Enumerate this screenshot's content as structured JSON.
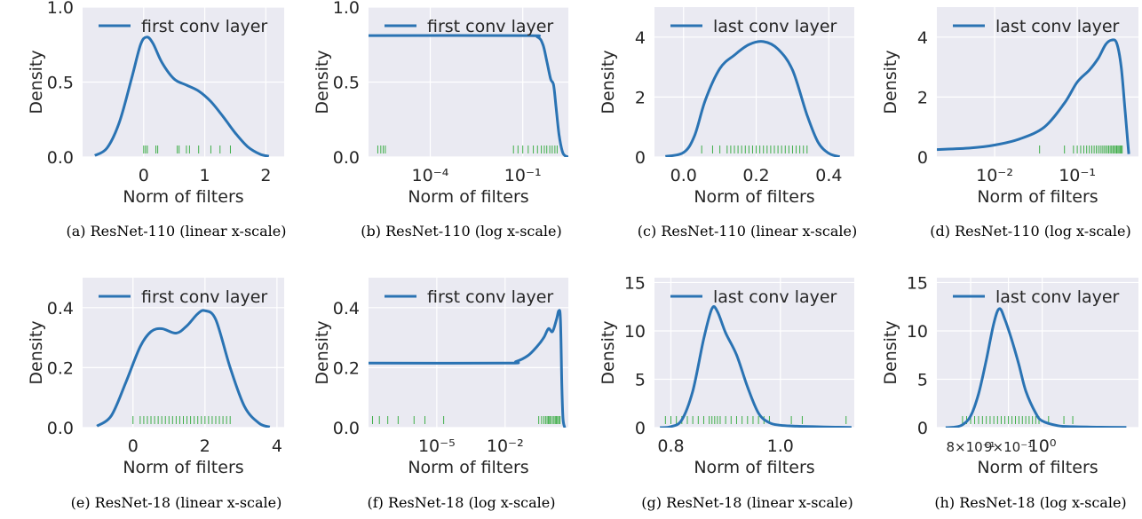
{
  "colors": {
    "background": "#eaeaf2",
    "grid": "#ffffff",
    "curve": "#2a73b3",
    "rug": "#3fae49",
    "text": "#262626"
  },
  "chart_data": [
    {
      "type": "line",
      "caption": "(a)  ResNet-110 (linear x-scale)",
      "legend": "first conv layer",
      "legend_loc": "upper center",
      "xlabel": "Norm of filters",
      "ylabel": "Density",
      "xscale": "linear",
      "xlim": [
        -1.0,
        2.3
      ],
      "ylim": [
        0,
        1.0
      ],
      "xticks": [
        0,
        1,
        2
      ],
      "xticklabels": [
        "0",
        "1",
        "2"
      ],
      "yticks": [
        0,
        0.5,
        1.0
      ],
      "yticklabels": [
        "0.0",
        "0.5",
        "1.0"
      ],
      "grid": true,
      "series": [
        {
          "x": [
            -0.8,
            -0.6,
            -0.4,
            -0.2,
            -0.05,
            0.05,
            0.15,
            0.3,
            0.5,
            0.7,
            0.9,
            1.1,
            1.3,
            1.5,
            1.7,
            1.9,
            2.05
          ],
          "y": [
            0.01,
            0.06,
            0.23,
            0.52,
            0.75,
            0.8,
            0.76,
            0.63,
            0.52,
            0.48,
            0.44,
            0.37,
            0.27,
            0.16,
            0.07,
            0.02,
            0.005
          ]
        }
      ],
      "rug": [
        0.0,
        0.03,
        0.06,
        0.2,
        0.23,
        0.55,
        0.58,
        0.7,
        0.75,
        0.9,
        1.1,
        1.25,
        1.42
      ]
    },
    {
      "type": "line",
      "caption": "(b)  ResNet-110 (log x-scale)",
      "legend": "first conv layer",
      "legend_loc": "upper center",
      "xlabel": "Norm of filters",
      "ylabel": "Density",
      "xscale": "log",
      "xlim": [
        1e-06,
        3.0
      ],
      "ylim": [
        0,
        1.0
      ],
      "xticks": [
        0.0001,
        0.1
      ],
      "xticklabels": [
        "10⁻⁴",
        "10⁻¹"
      ],
      "yticks": [
        0,
        0.5,
        1.0
      ],
      "yticklabels": [
        "0.0",
        "0.5",
        "1.0"
      ],
      "grid": true,
      "series": [
        {
          "x": [
            1e-06,
            0.1,
            0.3,
            0.45,
            0.6,
            0.8,
            1.0,
            1.2,
            1.5,
            1.9,
            2.3,
            3.0
          ],
          "y": [
            0.81,
            0.81,
            0.8,
            0.75,
            0.64,
            0.52,
            0.48,
            0.33,
            0.15,
            0.04,
            0.01,
            0.0
          ]
        }
      ],
      "rug": [
        2e-06,
        2.5e-06,
        3e-06,
        3.5e-06,
        0.05,
        0.07,
        0.1,
        0.15,
        0.22,
        0.3,
        0.4,
        0.5,
        0.6,
        0.75,
        0.9,
        1.1,
        1.3
      ]
    },
    {
      "type": "line",
      "caption": "(c)  ResNet-110 (linear x-scale)",
      "legend": "last conv layer",
      "legend_loc": "upper center",
      "xlabel": "Norm of filters",
      "ylabel": "Density",
      "xscale": "linear",
      "xlim": [
        -0.08,
        0.47
      ],
      "ylim": [
        0,
        5.0
      ],
      "xticks": [
        0.0,
        0.2,
        0.4
      ],
      "xticklabels": [
        "0.0",
        "0.2",
        "0.4"
      ],
      "yticks": [
        0,
        2,
        4
      ],
      "yticklabels": [
        "0",
        "2",
        "4"
      ],
      "grid": true,
      "series": [
        {
          "x": [
            -0.05,
            0.0,
            0.03,
            0.06,
            0.1,
            0.14,
            0.18,
            0.22,
            0.26,
            0.3,
            0.34,
            0.37,
            0.4,
            0.43
          ],
          "y": [
            0.02,
            0.15,
            0.7,
            1.9,
            2.95,
            3.4,
            3.75,
            3.85,
            3.6,
            2.9,
            1.4,
            0.5,
            0.12,
            0.01
          ]
        }
      ],
      "rug": [
        0.05,
        0.08,
        0.1,
        0.12,
        0.13,
        0.14,
        0.15,
        0.16,
        0.17,
        0.18,
        0.19,
        0.2,
        0.21,
        0.22,
        0.23,
        0.24,
        0.25,
        0.26,
        0.27,
        0.28,
        0.29,
        0.3,
        0.31,
        0.32,
        0.33,
        0.34
      ]
    },
    {
      "type": "line",
      "caption": "(d)  ResNet-110 (log x-scale)",
      "legend": "last conv layer",
      "legend_loc": "upper center",
      "xlabel": "Norm of filters",
      "ylabel": "Density",
      "xscale": "log",
      "xlim": [
        0.002,
        0.55
      ],
      "ylim": [
        0,
        5.0
      ],
      "xticks": [
        0.01,
        0.1
      ],
      "xticklabels": [
        "10⁻²",
        "10⁻¹"
      ],
      "yticks": [
        0,
        2,
        4
      ],
      "yticklabels": [
        "0",
        "2",
        "4"
      ],
      "grid": true,
      "series": [
        {
          "x": [
            0.002,
            0.005,
            0.01,
            0.02,
            0.04,
            0.07,
            0.1,
            0.14,
            0.18,
            0.22,
            0.26,
            0.3,
            0.34,
            0.38,
            0.42
          ],
          "y": [
            0.25,
            0.3,
            0.4,
            0.6,
            1.0,
            1.8,
            2.5,
            2.9,
            3.3,
            3.75,
            3.9,
            3.8,
            3.0,
            1.5,
            0.1
          ]
        }
      ],
      "rug": [
        0.035,
        0.07,
        0.09,
        0.1,
        0.11,
        0.12,
        0.13,
        0.14,
        0.15,
        0.16,
        0.17,
        0.18,
        0.19,
        0.2,
        0.21,
        0.22,
        0.23,
        0.24,
        0.25,
        0.26,
        0.27,
        0.28,
        0.29,
        0.3,
        0.31,
        0.32,
        0.33,
        0.34,
        0.35
      ]
    },
    {
      "type": "line",
      "caption": "(e)  ResNet-18 (linear x-scale)",
      "legend": "first conv layer",
      "legend_loc": "upper center",
      "xlabel": "Norm of filters",
      "ylabel": "Density",
      "xscale": "linear",
      "xlim": [
        -1.4,
        4.2
      ],
      "ylim": [
        0,
        0.5
      ],
      "xticks": [
        0,
        2,
        4
      ],
      "xticklabels": [
        "0",
        "2",
        "4"
      ],
      "yticks": [
        0,
        0.2,
        0.4
      ],
      "yticklabels": [
        "0.0",
        "0.2",
        "0.4"
      ],
      "grid": true,
      "series": [
        {
          "x": [
            -1.0,
            -0.6,
            -0.2,
            0.2,
            0.5,
            0.8,
            1.2,
            1.5,
            1.8,
            2.0,
            2.3,
            2.7,
            3.1,
            3.5,
            3.8
          ],
          "y": [
            0.005,
            0.04,
            0.15,
            0.27,
            0.32,
            0.33,
            0.315,
            0.34,
            0.38,
            0.39,
            0.36,
            0.2,
            0.07,
            0.015,
            0.002
          ]
        }
      ],
      "rug": [
        0.0,
        0.2,
        0.3,
        0.4,
        0.5,
        0.6,
        0.7,
        0.8,
        0.9,
        1.0,
        1.1,
        1.2,
        1.3,
        1.4,
        1.5,
        1.6,
        1.7,
        1.8,
        1.9,
        2.0,
        2.1,
        2.2,
        2.3,
        2.4,
        2.5,
        2.6,
        2.7
      ]
    },
    {
      "type": "line",
      "caption": "(f)  ResNet-18 (log x-scale)",
      "legend": "first conv layer",
      "legend_loc": "upper center",
      "xlabel": "Norm of filters",
      "ylabel": "Density",
      "xscale": "log",
      "xlim": [
        1e-08,
        6.0
      ],
      "ylim": [
        0,
        0.5
      ],
      "xticks": [
        1e-05,
        0.01
      ],
      "xticklabels": [
        "10⁻⁵",
        "10⁻²"
      ],
      "yticks": [
        0,
        0.2,
        0.4
      ],
      "yticklabels": [
        "0.0",
        "0.2",
        "0.4"
      ],
      "grid": true,
      "series": [
        {
          "x": [
            1e-08,
            0.01,
            0.03,
            0.1,
            0.25,
            0.5,
            0.8,
            1.2,
            1.8,
            2.3,
            2.7,
            3.1,
            3.5,
            4.2
          ],
          "y": [
            0.215,
            0.215,
            0.22,
            0.24,
            0.27,
            0.3,
            0.33,
            0.32,
            0.36,
            0.39,
            0.36,
            0.15,
            0.03,
            0.0
          ]
        }
      ],
      "rug": [
        1.5e-08,
        3e-08,
        7e-08,
        2e-07,
        1e-06,
        3e-06,
        2e-05,
        0.3,
        0.4,
        0.5,
        0.6,
        0.7,
        0.8,
        0.9,
        1.0,
        1.2,
        1.4,
        1.6,
        1.8,
        2.0,
        2.3,
        2.6
      ]
    },
    {
      "type": "line",
      "caption": "(g)  ResNet-18 (linear x-scale)",
      "legend": "last conv layer",
      "legend_loc": "upper center",
      "xlabel": "Norm of filters",
      "ylabel": "Density",
      "xscale": "linear",
      "xlim": [
        0.77,
        1.135
      ],
      "ylim": [
        0,
        15.5
      ],
      "xticks": [
        0.8,
        1.0
      ],
      "xticklabels": [
        "0.8",
        "1.0"
      ],
      "yticks": [
        0,
        5,
        10,
        15
      ],
      "yticklabels": [
        "0",
        "5",
        "10",
        "15"
      ],
      "grid": true,
      "series": [
        {
          "x": [
            0.78,
            0.8,
            0.82,
            0.84,
            0.86,
            0.875,
            0.885,
            0.9,
            0.92,
            0.94,
            0.96,
            0.98,
            1.0,
            1.03,
            1.06,
            1.1,
            1.13
          ],
          "y": [
            0.0,
            0.1,
            0.8,
            3.8,
            9.2,
            12.3,
            12.0,
            9.8,
            7.5,
            4.2,
            1.5,
            0.5,
            0.25,
            0.15,
            0.1,
            0.05,
            0.02
          ]
        }
      ],
      "rug": [
        0.79,
        0.8,
        0.81,
        0.82,
        0.83,
        0.84,
        0.85,
        0.86,
        0.87,
        0.875,
        0.88,
        0.885,
        0.89,
        0.9,
        0.91,
        0.92,
        0.93,
        0.94,
        0.95,
        0.96,
        0.97,
        0.98,
        1.02,
        1.04,
        1.12
      ]
    },
    {
      "type": "line",
      "caption": "(h)  ResNet-18 (log x-scale)",
      "legend": "last conv layer",
      "legend_loc": "upper center",
      "xlabel": "Norm of filters",
      "ylabel": "Density",
      "xscale": "log",
      "xlim": [
        0.72,
        1.35
      ],
      "ylim": [
        0,
        15.5
      ],
      "xticks": [
        0.8,
        0.9,
        1.0
      ],
      "xticklabels": [
        "8×10⁻¹",
        "9×10⁻¹",
        "10⁰"
      ],
      "yticks": [
        0,
        5,
        10,
        15
      ],
      "yticklabels": [
        "0",
        "5",
        "10",
        "15"
      ],
      "grid": true,
      "series": [
        {
          "x": [
            0.74,
            0.76,
            0.78,
            0.8,
            0.82,
            0.84,
            0.86,
            0.875,
            0.89,
            0.91,
            0.93,
            0.95,
            0.98,
            1.0,
            1.05,
            1.1,
            1.2,
            1.3
          ],
          "y": [
            0.0,
            0.05,
            0.3,
            1.2,
            3.5,
            7.0,
            10.8,
            12.3,
            11.2,
            9.0,
            6.5,
            3.8,
            1.5,
            0.7,
            0.2,
            0.1,
            0.05,
            0.02
          ]
        }
      ],
      "rug": [
        0.78,
        0.79,
        0.8,
        0.81,
        0.82,
        0.83,
        0.84,
        0.85,
        0.86,
        0.87,
        0.88,
        0.89,
        0.9,
        0.91,
        0.92,
        0.93,
        0.94,
        0.95,
        0.96,
        0.97,
        0.98,
        0.99,
        1.02,
        1.07,
        1.1
      ]
    }
  ]
}
